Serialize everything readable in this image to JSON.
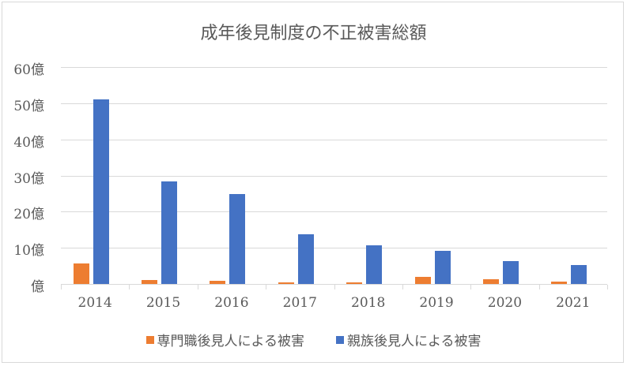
{
  "chart_data": {
    "type": "bar",
    "title": "成年後見制度の不正被害総額",
    "xlabel": "",
    "ylabel": "",
    "categories": [
      "2014",
      "2015",
      "2016",
      "2017",
      "2018",
      "2019",
      "2020",
      "2021"
    ],
    "series": [
      {
        "name": "専門職後見人による被害",
        "color": "#ED7D31",
        "values": [
          5.6,
          1.1,
          0.9,
          0.5,
          0.5,
          2.0,
          1.3,
          0.7
        ]
      },
      {
        "name": "親族後見人による被害",
        "color": "#4472C4",
        "values": [
          51.1,
          28.4,
          24.9,
          13.8,
          10.7,
          9.2,
          6.3,
          5.2
        ]
      }
    ],
    "unit": "億",
    "ylim": [
      0,
      60
    ],
    "yticks": [
      0,
      10,
      20,
      30,
      40,
      50,
      60
    ],
    "ytick_labels": [
      "億",
      "10億",
      "20億",
      "30億",
      "40億",
      "50億",
      "60億"
    ],
    "grid": true,
    "legend_position": "bottom"
  }
}
